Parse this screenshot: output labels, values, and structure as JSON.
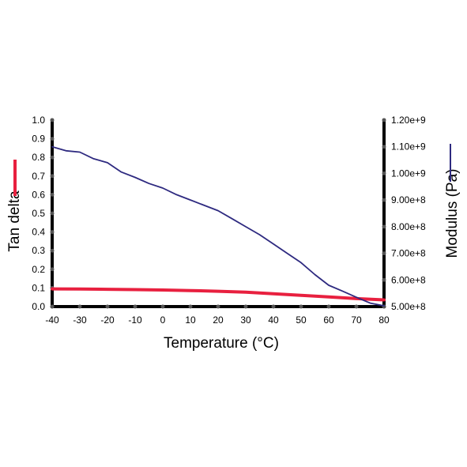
{
  "chart_data": {
    "type": "line",
    "xlabel": "Temperature (°C)",
    "ylabel_left": "Tan delta",
    "ylabel_right": "Modulus (Pa)",
    "xlim": [
      -40,
      80
    ],
    "ylim_left": [
      0.0,
      1.0
    ],
    "ylim_right": [
      500000000,
      1200000000
    ],
    "x_ticks": [
      -40,
      -30,
      -20,
      -10,
      0,
      10,
      20,
      30,
      40,
      50,
      60,
      70,
      80
    ],
    "y_left_ticks": [
      "0.0",
      "0.1",
      "0.2",
      "0.3",
      "0.4",
      "0.5",
      "0.6",
      "0.7",
      "0.8",
      "0.9",
      "1.0"
    ],
    "y_right_ticks": [
      "5.00e+8",
      "6.00e+8",
      "7.00e+8",
      "8.00e+8",
      "9.00e+8",
      "1.00e+9",
      "1.10e+9",
      "1.20e+9"
    ],
    "grid": false,
    "series": [
      {
        "name": "Tan delta",
        "axis": "left",
        "color": "#e8203f",
        "x": [
          -40,
          -30,
          -20,
          -10,
          0,
          10,
          20,
          30,
          40,
          50,
          60,
          70,
          80
        ],
        "y": [
          0.095,
          0.094,
          0.093,
          0.091,
          0.089,
          0.086,
          0.082,
          0.077,
          0.069,
          0.06,
          0.052,
          0.043,
          0.036
        ]
      },
      {
        "name": "Modulus",
        "axis": "right",
        "color": "#2e2a80",
        "x": [
          -40,
          -35,
          -30,
          -25,
          -20,
          -15,
          -10,
          -5,
          0,
          5,
          10,
          15,
          20,
          25,
          30,
          35,
          40,
          45,
          50,
          55,
          60,
          65,
          70,
          75,
          80
        ],
        "y": [
          1100000000,
          1085000000,
          1080000000,
          1055000000,
          1040000000,
          1005000000,
          985000000,
          962000000,
          945000000,
          920000000,
          900000000,
          880000000,
          860000000,
          830000000,
          800000000,
          770000000,
          735000000,
          700000000,
          665000000,
          620000000,
          580000000,
          558000000,
          535000000,
          513000000,
          503000000
        ]
      }
    ]
  }
}
